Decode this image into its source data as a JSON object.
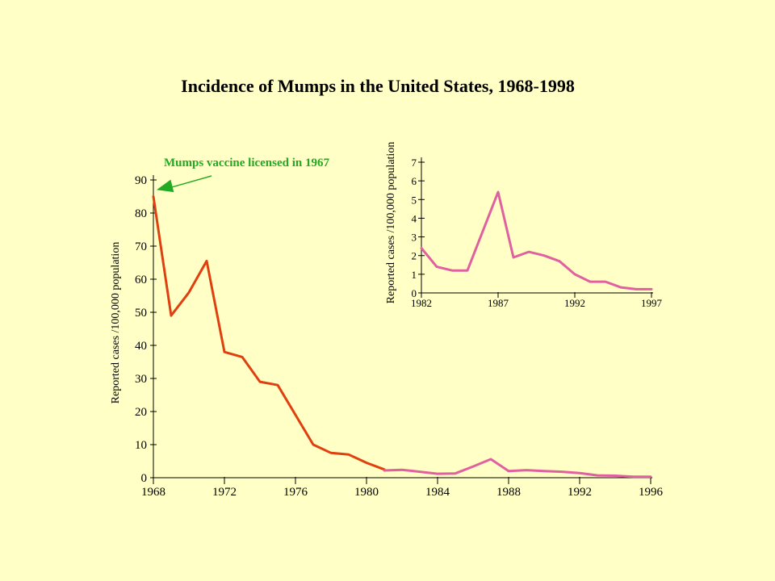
{
  "colors": {
    "background": "#ffffc6",
    "main_line": "#e04010",
    "inset_line": "#e060a0",
    "annotation": "#22aa22"
  },
  "chart_data": [
    {
      "id": "main",
      "type": "line",
      "title": "Incidence of Mumps in the United States, 1968-1998",
      "xlabel": "",
      "ylabel": "Reported cases /100,000 population",
      "xlim": [
        1968,
        1996
      ],
      "ylim": [
        0,
        90
      ],
      "xticks": [
        "1968",
        "1972",
        "1976",
        "1980",
        "1984",
        "1988",
        "1992",
        "1996"
      ],
      "yticks": [
        "0",
        "10",
        "20",
        "30",
        "40",
        "50",
        "60",
        "70",
        "80",
        "90"
      ],
      "grid": false,
      "annotation": {
        "text": "Mumps vaccine  licensed in 1967",
        "arrow_to": [
          1968,
          87
        ]
      },
      "series": [
        {
          "x": [
            1968,
            1969,
            1970,
            1971,
            1972,
            1973,
            1974,
            1975,
            1976,
            1977,
            1978,
            1979,
            1980,
            1981
          ],
          "y": [
            85,
            49,
            56,
            65.5,
            38,
            36.5,
            29,
            28,
            19,
            10,
            7.5,
            7,
            4.5,
            2.5
          ]
        },
        {
          "x": [
            1981,
            1982,
            1983,
            1984,
            1985,
            1986,
            1987,
            1988,
            1989,
            1990,
            1991,
            1992,
            1993,
            1994,
            1995,
            1996
          ],
          "y": [
            2.2,
            2.4,
            1.8,
            1.2,
            1.3,
            3.4,
            5.6,
            2.0,
            2.3,
            2.0,
            1.8,
            1.4,
            0.7,
            0.6,
            0.3,
            0.3
          ]
        }
      ]
    },
    {
      "id": "inset",
      "type": "line",
      "title": "",
      "xlabel": "",
      "ylabel": "Reported cases /100,000 population",
      "xlim": [
        1982,
        1997
      ],
      "ylim": [
        0,
        7
      ],
      "xticks": [
        "1982",
        "1987",
        "1992",
        "1997"
      ],
      "yticks": [
        "0",
        "1",
        "2",
        "3",
        "4",
        "5",
        "6",
        "7"
      ],
      "grid": false,
      "series": [
        {
          "x": [
            1982,
            1983,
            1984,
            1985,
            1986,
            1987,
            1988,
            1989,
            1990,
            1991,
            1992,
            1993,
            1994,
            1995,
            1996,
            1997
          ],
          "y": [
            2.4,
            1.4,
            1.2,
            1.2,
            3.3,
            5.4,
            1.9,
            2.2,
            2.0,
            1.7,
            1.0,
            0.6,
            0.6,
            0.3,
            0.2,
            0.2
          ]
        }
      ]
    }
  ]
}
